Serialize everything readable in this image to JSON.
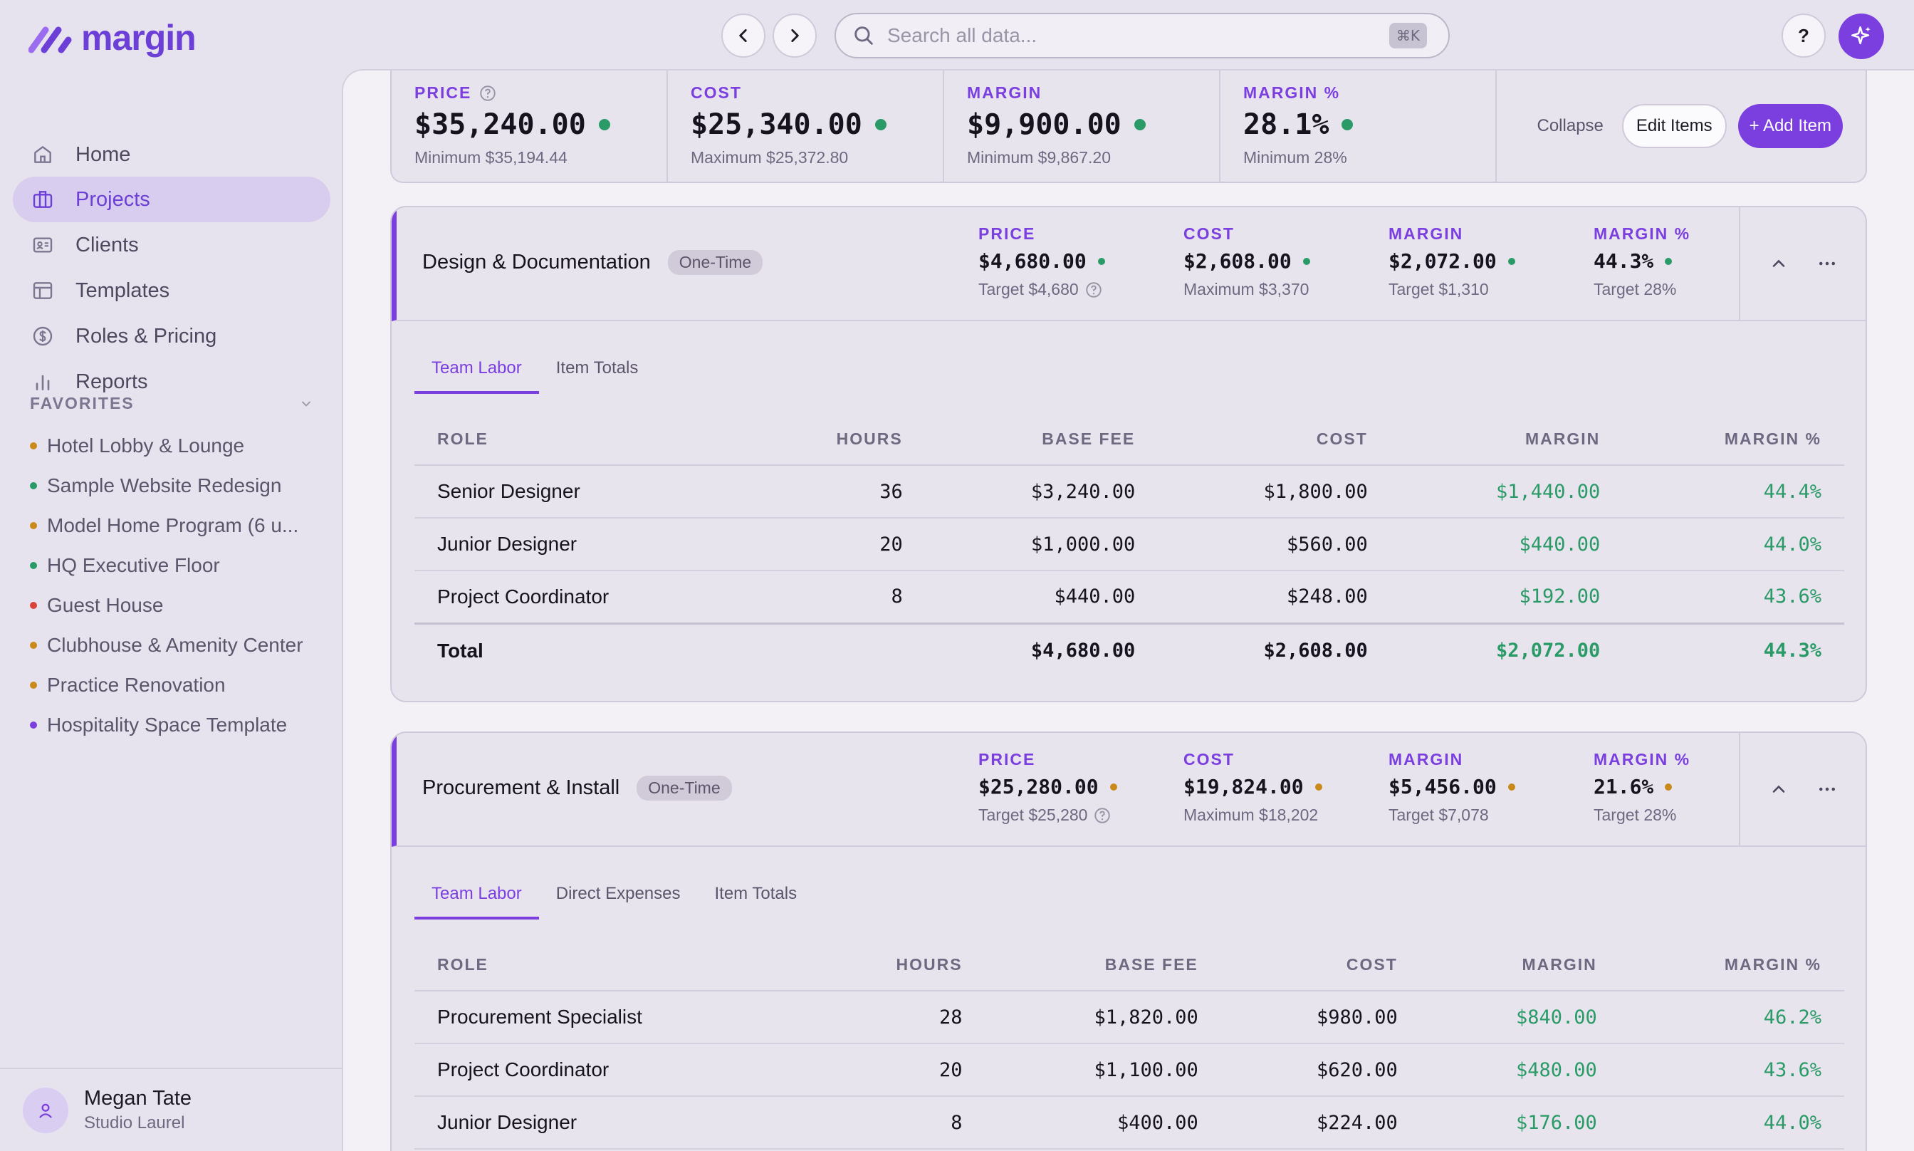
{
  "app": {
    "logo_text": "margin"
  },
  "search": {
    "placeholder": "Search all data...",
    "shortcut": "⌘K"
  },
  "help_label": "?",
  "colors": {
    "accent": "#7b3fe0",
    "good": "#2a9a67",
    "warn": "#c98a1a",
    "danger": "#d9443a"
  },
  "sidebar": {
    "items": [
      {
        "label": "Home",
        "icon": "home-icon"
      },
      {
        "label": "Projects",
        "icon": "briefcase-icon",
        "active": true
      },
      {
        "label": "Clients",
        "icon": "id-card-icon"
      },
      {
        "label": "Templates",
        "icon": "layout-icon"
      },
      {
        "label": "Roles & Pricing",
        "icon": "dollar-circle-icon"
      },
      {
        "label": "Reports",
        "icon": "bar-chart-icon"
      }
    ],
    "favorites_label": "FAVORITES",
    "favorites": [
      {
        "label": "Hotel Lobby & Lounge",
        "status": "warn"
      },
      {
        "label": "Sample Website Redesign",
        "status": "good"
      },
      {
        "label": "Model Home Program (6 u...",
        "status": "warn"
      },
      {
        "label": "HQ Executive Floor",
        "status": "good"
      },
      {
        "label": "Guest House",
        "status": "danger"
      },
      {
        "label": "Clubhouse & Amenity Center",
        "status": "warn"
      },
      {
        "label": "Practice Renovation",
        "status": "warn"
      },
      {
        "label": "Hospitality Space Template",
        "status": "accent"
      }
    ],
    "user": {
      "name": "Megan Tate",
      "org": "Studio Laurel"
    }
  },
  "summary": {
    "price": {
      "label": "PRICE",
      "value": "$35,240.00",
      "sub": "Minimum $35,194.44"
    },
    "cost": {
      "label": "COST",
      "value": "$25,340.00",
      "sub": "Maximum $25,372.80"
    },
    "margin": {
      "label": "MARGIN",
      "value": "$9,900.00",
      "sub": "Minimum $9,867.20"
    },
    "margin_pct": {
      "label": "MARGIN %",
      "value": "28.1%",
      "sub": "Minimum 28%"
    },
    "collapse": "Collapse",
    "edit_items": "Edit Items",
    "add_item": "+ Add Item"
  },
  "columns": {
    "role": "ROLE",
    "hours": "HOURS",
    "base_fee": "BASE FEE",
    "cost": "COST",
    "margin": "MARGIN",
    "margin_pct": "MARGIN %"
  },
  "sections": [
    {
      "name": "Design & Documentation",
      "badge": "One-Time",
      "price": {
        "label": "PRICE",
        "value": "$4,680.00",
        "sub": "Target $4,680"
      },
      "cost": {
        "label": "COST",
        "value": "$2,608.00",
        "sub": "Maximum $3,370"
      },
      "margin": {
        "label": "MARGIN",
        "value": "$2,072.00",
        "sub": "Target $1,310"
      },
      "margin_pct": {
        "label": "MARGIN %",
        "value": "44.3%",
        "sub": "Target 28%"
      },
      "tabs": [
        "Team Labor",
        "Item Totals"
      ],
      "rows": [
        {
          "role": "Senior Designer",
          "hours": "36",
          "base_fee": "$3,240.00",
          "cost": "$1,800.00",
          "margin": "$1,440.00",
          "margin_pct": "44.4%"
        },
        {
          "role": "Junior Designer",
          "hours": "20",
          "base_fee": "$1,000.00",
          "cost": "$560.00",
          "margin": "$440.00",
          "margin_pct": "44.0%"
        },
        {
          "role": "Project Coordinator",
          "hours": "8",
          "base_fee": "$440.00",
          "cost": "$248.00",
          "margin": "$192.00",
          "margin_pct": "43.6%"
        }
      ],
      "total": {
        "label": "Total",
        "base_fee": "$4,680.00",
        "cost": "$2,608.00",
        "margin": "$2,072.00",
        "margin_pct": "44.3%"
      }
    },
    {
      "name": "Procurement & Install",
      "badge": "One-Time",
      "price": {
        "label": "PRICE",
        "value": "$25,280.00",
        "sub": "Target $25,280"
      },
      "cost": {
        "label": "COST",
        "value": "$19,824.00",
        "sub": "Maximum $18,202"
      },
      "margin": {
        "label": "MARGIN",
        "value": "$5,456.00",
        "sub": "Target $7,078"
      },
      "margin_pct": {
        "label": "MARGIN %",
        "value": "21.6%",
        "sub": "Target 28%"
      },
      "tabs": [
        "Team Labor",
        "Direct Expenses",
        "Item Totals"
      ],
      "rows": [
        {
          "role": "Procurement Specialist",
          "hours": "28",
          "base_fee": "$1,820.00",
          "cost": "$980.00",
          "margin": "$840.00",
          "margin_pct": "46.2%"
        },
        {
          "role": "Project Coordinator",
          "hours": "20",
          "base_fee": "$1,100.00",
          "cost": "$620.00",
          "margin": "$480.00",
          "margin_pct": "43.6%"
        },
        {
          "role": "Junior Designer",
          "hours": "8",
          "base_fee": "$400.00",
          "cost": "$224.00",
          "margin": "$176.00",
          "margin_pct": "44.0%"
        }
      ]
    }
  ]
}
